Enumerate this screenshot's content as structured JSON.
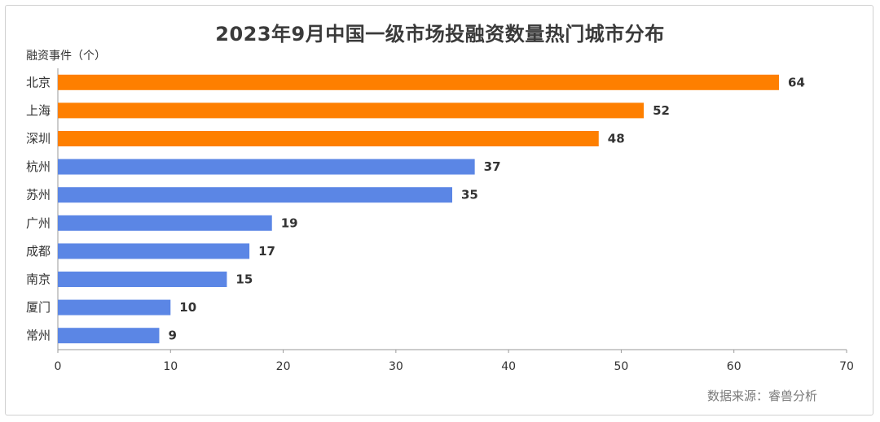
{
  "colors": {
    "highlight": "#fe7f00",
    "default": "#5b86e5",
    "axis": "#9a9a9a",
    "grid": "#d9d9d9"
  },
  "chart_data": {
    "type": "bar",
    "orientation": "horizontal",
    "title": "2023年9月中国一级市场投融资数量热门城市分布",
    "ylabel": "融资事件（个）",
    "xlabel": "",
    "categories": [
      "北京",
      "上海",
      "深圳",
      "杭州",
      "苏州",
      "广州",
      "成都",
      "南京",
      "厦门",
      "常州"
    ],
    "values": [
      64,
      52,
      48,
      37,
      35,
      19,
      17,
      15,
      10,
      9
    ],
    "highlight_count": 3,
    "xlim": [
      0,
      70
    ],
    "xticks": [
      0,
      10,
      20,
      30,
      40,
      50,
      60,
      70
    ],
    "grid": false,
    "legend": "none"
  },
  "source": "数据来源：睿兽分析"
}
